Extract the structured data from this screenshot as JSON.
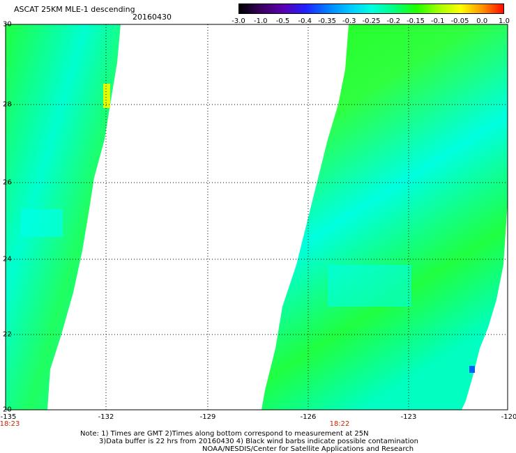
{
  "title": "ASCAT 25KM MLE-1 descending",
  "date": "20160430",
  "colorbar": {
    "labels": [
      "-3.0",
      "-1.0",
      "-0.5",
      "-0.4",
      "-0.35",
      "-0.3",
      "-0.25",
      "-0.2",
      "-0.15",
      "-0.1",
      "-0.05",
      "0.0",
      "1.0"
    ],
    "colors": [
      "#000000",
      "#3a0060",
      "#5a00b0",
      "#2020ff",
      "#0080ff",
      "#00c8ff",
      "#00ffe0",
      "#00ff80",
      "#20ff00",
      "#a0ff00",
      "#ffff00",
      "#ff9000",
      "#ff0000"
    ]
  },
  "axes": {
    "y_ticks": [
      "30",
      "28",
      "26",
      "24",
      "22",
      "20"
    ],
    "x_ticks": [
      "-135",
      "-132",
      "-129",
      "-126",
      "-123",
      "-120"
    ],
    "time_labels": [
      "18:23",
      "18:22"
    ]
  },
  "notes": {
    "line1": "Note: 1) Times are GMT 2)Times along bottom correspond to measurement at 25N",
    "line2": "3)Data buffer is 22 hrs from 20160430 4) Black wind barbs indicate possible contamination",
    "line3": "NOAA/NESDIS/Center for Satellite Applications and Research"
  }
}
